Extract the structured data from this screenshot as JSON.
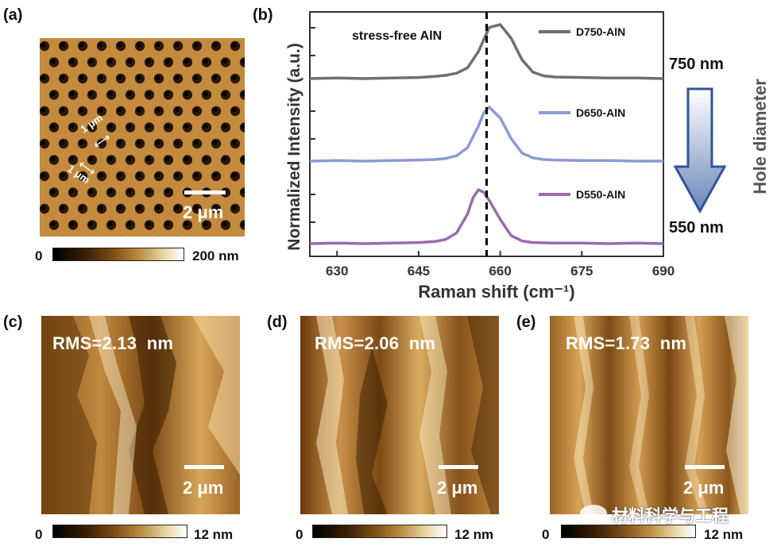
{
  "panel_a": {
    "label": "(a)",
    "dim1": "1 μm",
    "dim2": "1 μm",
    "scale": "2 μm",
    "cb_min": "0",
    "cb_max": "200 nm"
  },
  "panel_b": {
    "label": "(b)",
    "annotation": "stress-free AlN",
    "hole_top": "750 nm",
    "hole_bottom": "550 nm",
    "hole_axis": "Hole diameter"
  },
  "panel_c": {
    "label": "(c)",
    "rms": "RMS=2.13  nm",
    "scale": "2 μm",
    "cb_min": "0",
    "cb_max": "12 nm"
  },
  "panel_d": {
    "label": "(d)",
    "rms": "RMS=2.06  nm",
    "scale": "2 μm",
    "cb_min": "0",
    "cb_max": "12 nm"
  },
  "panel_e": {
    "label": "(e)",
    "rms": "RMS=1.73  nm",
    "scale": "2 μm",
    "cb_min": "0",
    "cb_max": "12 nm"
  },
  "watermark": "材料科学与工程",
  "colors": {
    "D750": "#6f6f6f",
    "D650": "#8a9ad4",
    "D550": "#9a6bb0",
    "arrow": "#3d5f9e"
  },
  "chart_data": {
    "type": "line",
    "xlabel": "Raman shift (cm⁻¹)",
    "ylabel": "Normalized Intensity (a.u.)",
    "xlim": [
      625,
      690
    ],
    "x_ticks": [
      "630",
      "645",
      "660",
      "675",
      "690"
    ],
    "reference_line_x": 657.5,
    "series": [
      {
        "name": "D750-AlN",
        "x": [
          625,
          630,
          635,
          640,
          645,
          648,
          650,
          652,
          654,
          656,
          658,
          660,
          662,
          664,
          666,
          668,
          670,
          675,
          680,
          685,
          690
        ],
        "values": [
          0.0,
          0.01,
          0.0,
          0.01,
          0.02,
          0.04,
          0.06,
          0.1,
          0.2,
          0.5,
          0.95,
          1.0,
          0.75,
          0.35,
          0.12,
          0.05,
          0.03,
          0.02,
          0.01,
          0.01,
          0.0
        ]
      },
      {
        "name": "D650-AlN",
        "x": [
          625,
          630,
          635,
          640,
          645,
          648,
          650,
          652,
          654,
          656,
          657,
          658,
          660,
          662,
          664,
          666,
          668,
          670,
          675,
          680,
          685,
          690
        ],
        "values": [
          0.0,
          0.01,
          0.0,
          0.01,
          0.02,
          0.03,
          0.05,
          0.1,
          0.25,
          0.65,
          0.9,
          1.0,
          0.8,
          0.42,
          0.15,
          0.06,
          0.03,
          0.02,
          0.01,
          0.01,
          0.0,
          0.0
        ]
      },
      {
        "name": "D550-AlN",
        "x": [
          625,
          630,
          635,
          640,
          645,
          648,
          650,
          652,
          654,
          655,
          656,
          657,
          658,
          660,
          662,
          664,
          666,
          670,
          675,
          680,
          685,
          690
        ],
        "values": [
          0.0,
          0.01,
          0.0,
          0.01,
          0.02,
          0.04,
          0.08,
          0.2,
          0.55,
          0.85,
          1.0,
          0.95,
          0.8,
          0.45,
          0.15,
          0.05,
          0.02,
          0.01,
          0.01,
          0.0,
          0.01,
          0.0
        ]
      }
    ]
  }
}
